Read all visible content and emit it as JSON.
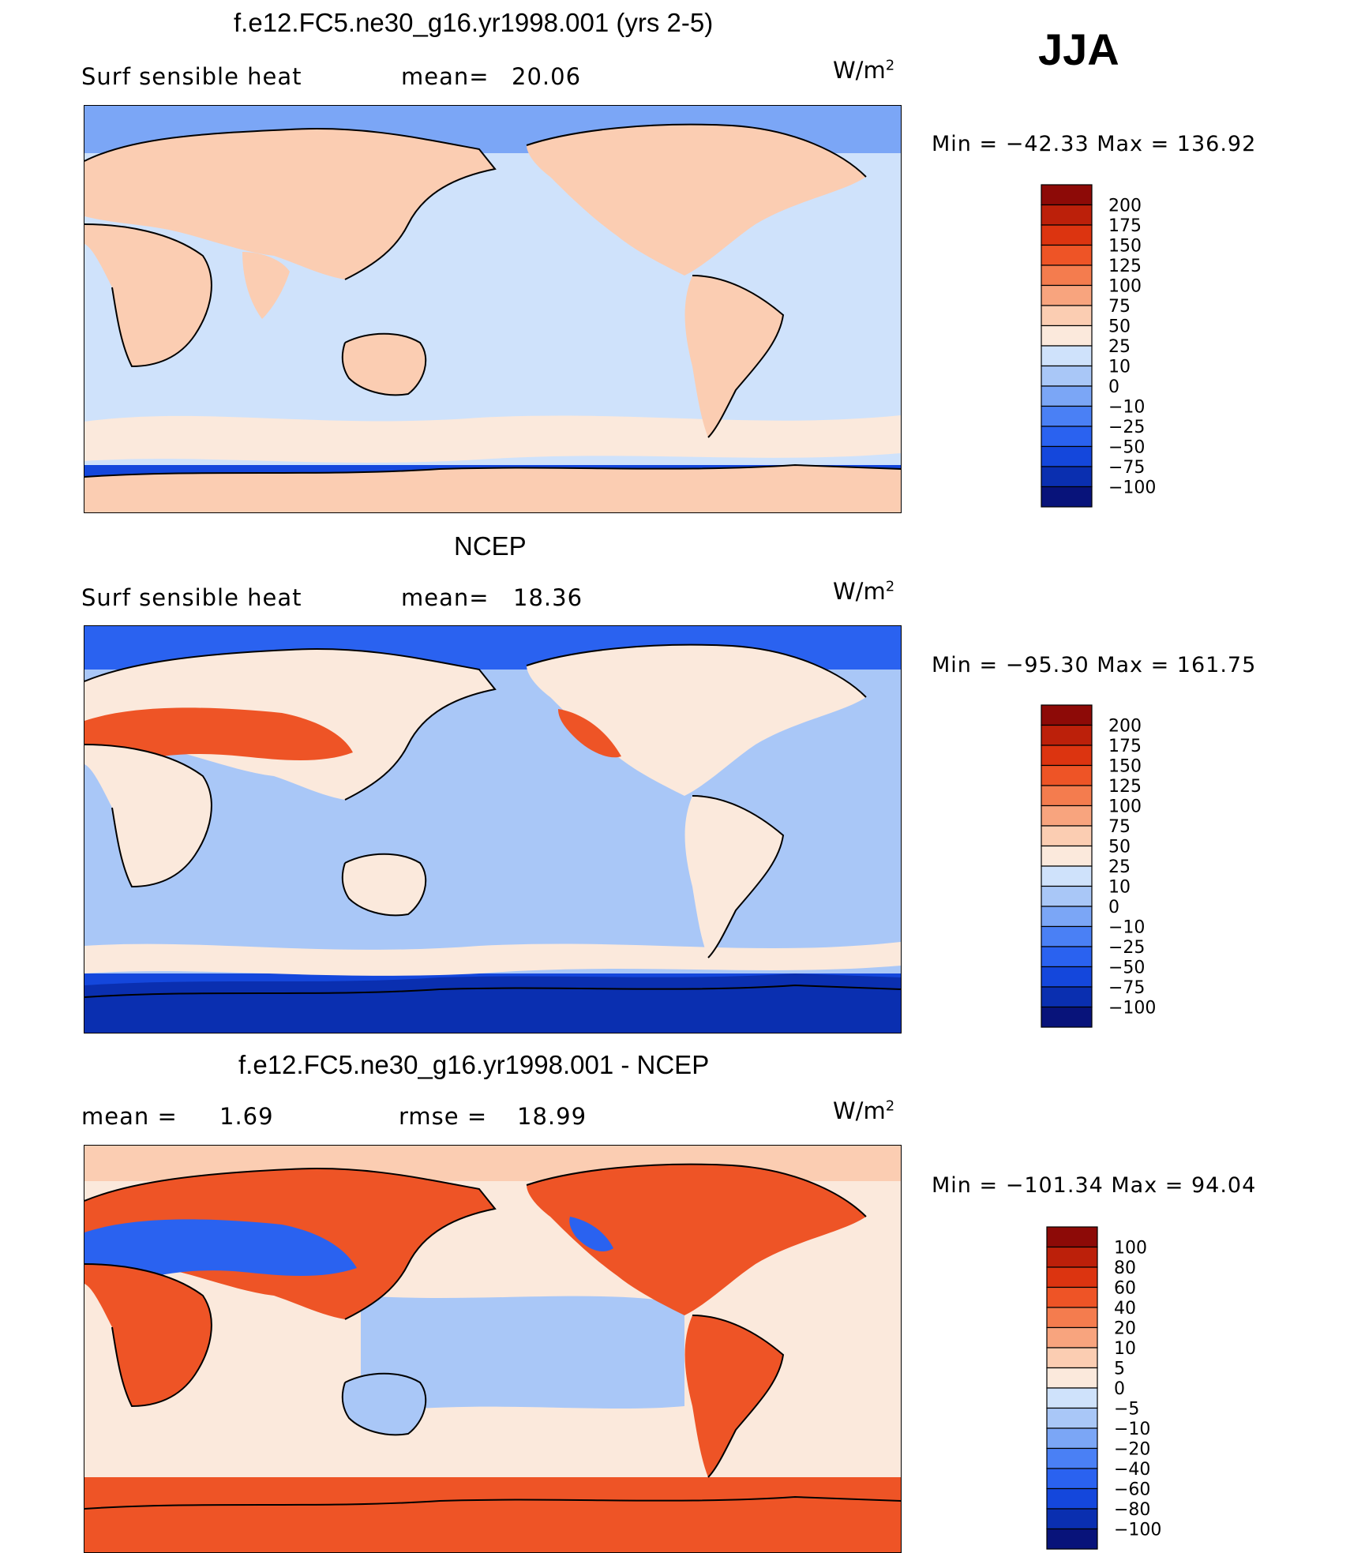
{
  "season": "JJA",
  "units": "W/m",
  "units_sup": "2",
  "palette_abs": [
    "#08137a",
    "#0a2fb0",
    "#1447dc",
    "#2a62f0",
    "#4a80f5",
    "#7ba6f6",
    "#a9c7f7",
    "#cfe2fb",
    "#fbe9dc",
    "#fbcdb2",
    "#f8a47e",
    "#f47c4e",
    "#ee5426",
    "#dc3410",
    "#bc200a",
    "#8d0a07"
  ],
  "panels": [
    {
      "title": "f.e12.FC5.ne30_g16.yr1998.001 (yrs 2-5)",
      "left_label": "Surf  sensible  heat",
      "stat_label": "mean=",
      "stat_value": "20.06",
      "minmax": "Min  =  −42.33  Max  =  136.92",
      "colorbar_labels": [
        "200",
        "175",
        "150",
        "125",
        "100",
        "75",
        "50",
        "25",
        "10",
        "0",
        "−10",
        "−25",
        "−50",
        "−75",
        "−100"
      ],
      "ocean_level": 7
    },
    {
      "title": "NCEP",
      "left_label": "Surf  sensible  heat",
      "stat_label": "mean=",
      "stat_value": "18.36",
      "minmax": "Min  =  −95.30  Max  =  161.75",
      "colorbar_labels": [
        "200",
        "175",
        "150",
        "125",
        "100",
        "75",
        "50",
        "25",
        "10",
        "0",
        "−10",
        "−25",
        "−50",
        "−75",
        "−100"
      ],
      "ocean_level": 6
    },
    {
      "title": "f.e12.FC5.ne30_g16.yr1998.001 - NCEP",
      "left_label": "mean  =",
      "left_value": "1.69",
      "stat_label": "rmse  =",
      "stat_value": "18.99",
      "minmax": "Min  =  −101.34  Max  =    94.04",
      "colorbar_labels": [
        "100",
        "80",
        "60",
        "40",
        "20",
        "10",
        "5",
        "0",
        "−5",
        "−10",
        "−20",
        "−40",
        "−60",
        "−80",
        "−100"
      ],
      "ocean_level": 8
    }
  ],
  "chart_data": {
    "type": "heatmap",
    "season": "JJA",
    "variable": "Surf sensible heat",
    "units": "W/m2",
    "panels": [
      {
        "name": "f.e12.FC5.ne30_g16.yr1998.001 (yrs 2-5)",
        "mean": 20.06,
        "min": -42.33,
        "max": 136.92,
        "levels": [
          -100,
          -75,
          -50,
          -25,
          -10,
          0,
          10,
          25,
          50,
          75,
          100,
          125,
          150,
          175,
          200
        ]
      },
      {
        "name": "NCEP",
        "mean": 18.36,
        "min": -95.3,
        "max": 161.75,
        "levels": [
          -100,
          -75,
          -50,
          -25,
          -10,
          0,
          10,
          25,
          50,
          75,
          100,
          125,
          150,
          175,
          200
        ]
      },
      {
        "name": "f.e12.FC5.ne30_g16.yr1998.001 - NCEP",
        "mean": 1.69,
        "rmse": 18.99,
        "min": -101.34,
        "max": 94.04,
        "levels": [
          -100,
          -80,
          -60,
          -40,
          -20,
          -10,
          -5,
          0,
          5,
          10,
          20,
          40,
          60,
          80,
          100
        ]
      }
    ]
  }
}
